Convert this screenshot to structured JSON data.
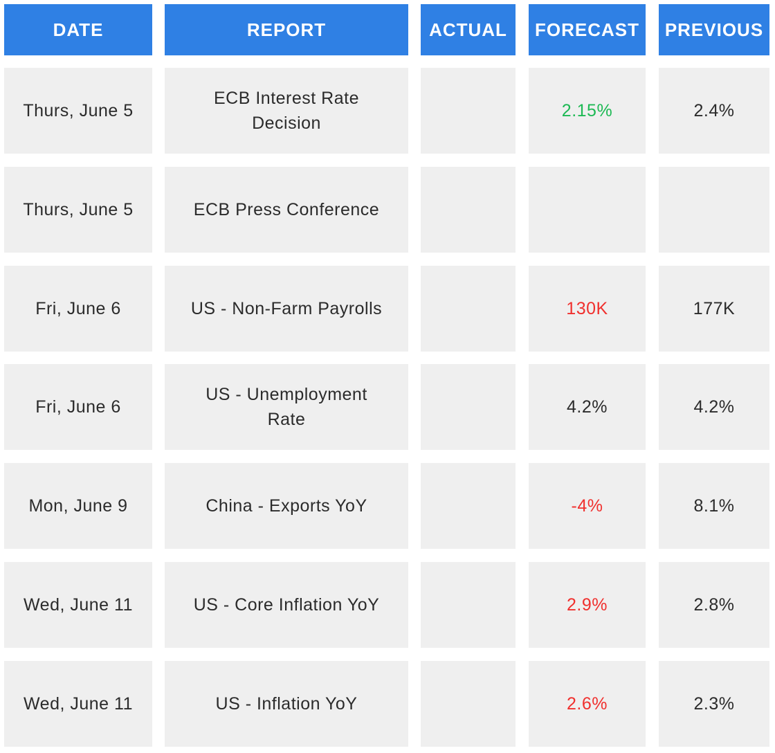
{
  "table": {
    "columns": [
      "DATE",
      "REPORT",
      "ACTUAL",
      "FORECAST",
      "PREVIOUS"
    ],
    "rows": [
      {
        "date": "Thurs, June 5",
        "report": [
          "ECB Interest Rate",
          "Decision"
        ],
        "forecast": {
          "text": "2.15%",
          "color": "#1db954"
        },
        "previous": "2.4%"
      },
      {
        "date": "Thurs, June 5",
        "report": [
          "ECB Press Conference"
        ],
        "forecast": null,
        "previous": null
      },
      {
        "date": "Fri, June 6",
        "report": [
          "US - Non-Farm Payrolls"
        ],
        "forecast": {
          "text": "130K",
          "color": "#f0302e"
        },
        "previous": "177K"
      },
      {
        "date": "Fri, June 6",
        "report": [
          "US - Unemployment",
          "Rate"
        ],
        "forecast": {
          "text": "4.2%",
          "color": "#2b2b2b"
        },
        "previous": "4.2%"
      },
      {
        "date": "Mon, June 9",
        "report": [
          "China - Exports YoY"
        ],
        "forecast": {
          "text": "-4%",
          "color": "#f0302e"
        },
        "previous": "8.1%"
      },
      {
        "date": "Wed, June 11",
        "report": [
          "US - Core Inflation YoY"
        ],
        "forecast": {
          "text": "2.9%",
          "color": "#f0302e"
        },
        "previous": "2.8%"
      },
      {
        "date": "Wed, June 11",
        "report": [
          "US - Inflation YoY"
        ],
        "forecast": {
          "text": "2.6%",
          "color": "#f0302e"
        },
        "previous": "2.3%"
      }
    ]
  }
}
